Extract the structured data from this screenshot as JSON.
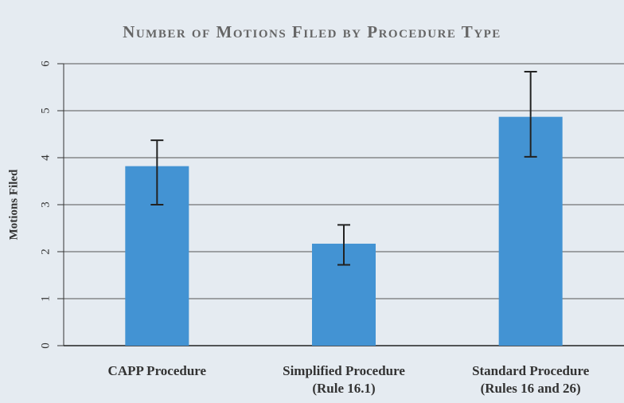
{
  "chart_data": {
    "type": "bar",
    "title": "Number of Motions Filed by Procedure Type",
    "y_label": "Motions Filed",
    "categories": [
      [
        "CAPP Procedure"
      ],
      [
        "Simplified Procedure",
        "(Rule 16.1)"
      ],
      [
        "Standard Procedure",
        "(Rules 16 and 26)"
      ]
    ],
    "values": [
      3.82,
      2.17,
      4.87
    ],
    "errors_lower": [
      0.82,
      0.45,
      0.85
    ],
    "errors_upper": [
      0.55,
      0.4,
      0.96
    ],
    "color": "#4393d3",
    "ylim": [
      0,
      6
    ],
    "yticks": [
      0,
      1,
      2,
      3,
      4,
      5,
      6
    ],
    "grid": true
  }
}
